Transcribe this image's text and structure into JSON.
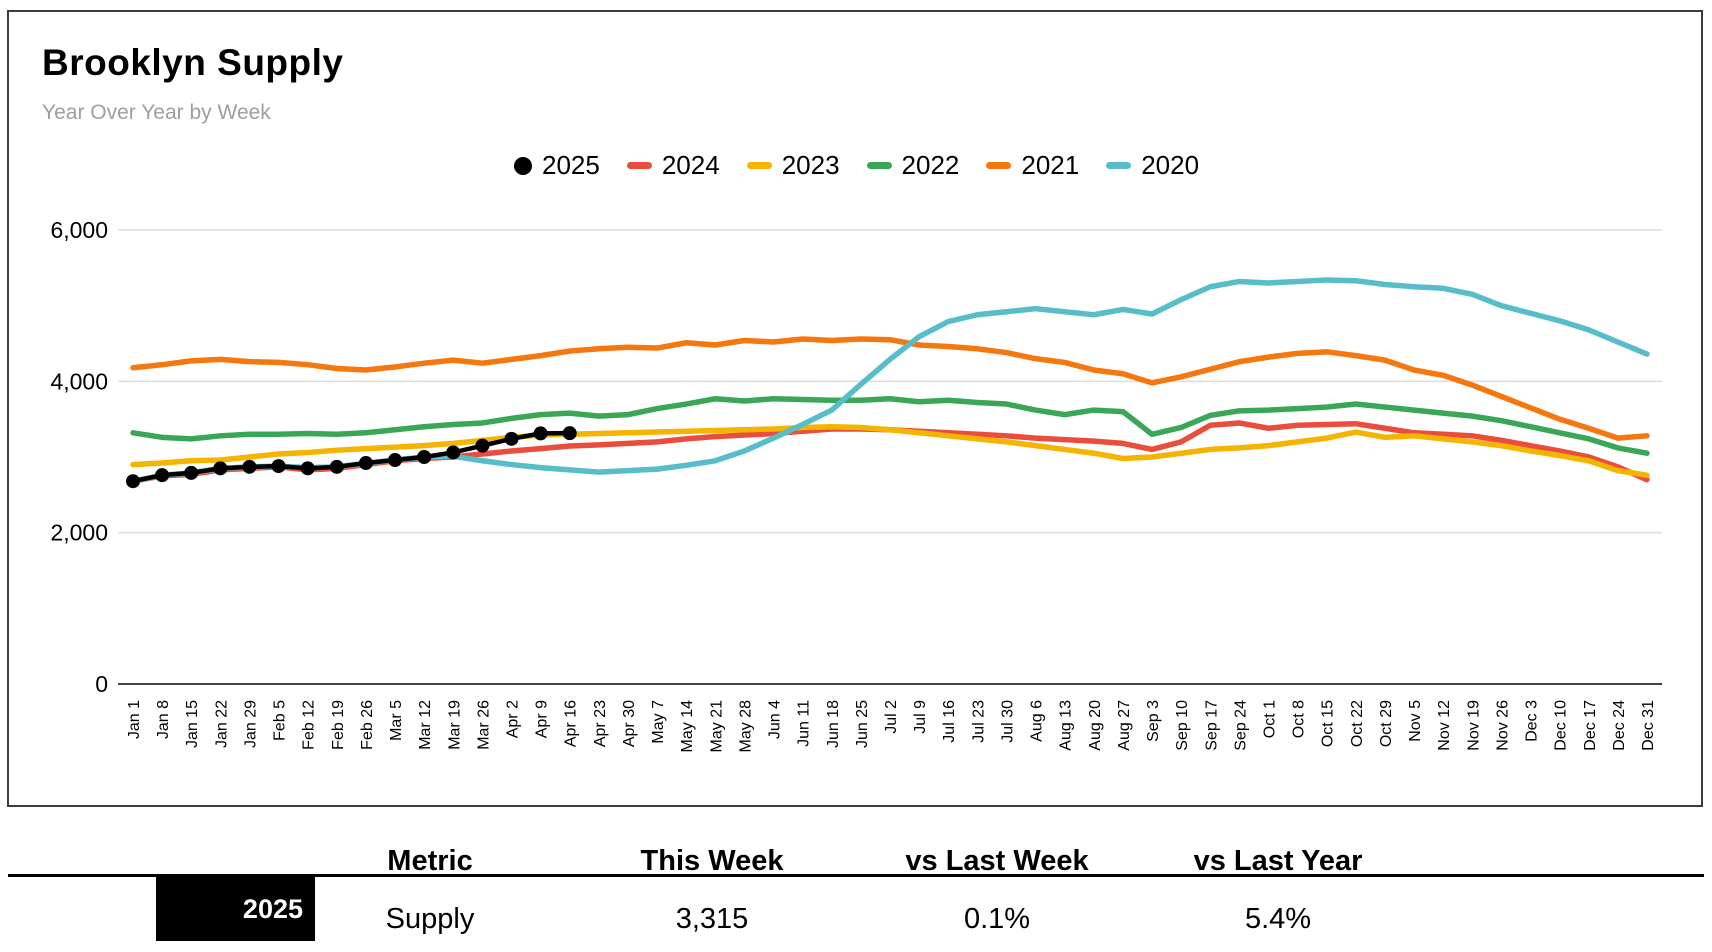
{
  "header": {
    "title": "Brooklyn Supply",
    "subtitle": "Year Over Year by Week"
  },
  "chart_data": {
    "type": "line",
    "title": "Brooklyn Supply",
    "subtitle": "Year Over Year by Week",
    "legend_position": "top",
    "x_labels": [
      "Jan 1",
      "Jan 8",
      "Jan 15",
      "Jan 22",
      "Jan 29",
      "Feb 5",
      "Feb 12",
      "Feb 19",
      "Feb 26",
      "Mar 5",
      "Mar 12",
      "Mar 19",
      "Mar 26",
      "Apr 2",
      "Apr 9",
      "Apr 16",
      "Apr 23",
      "Apr 30",
      "May 7",
      "May 14",
      "May 21",
      "May 28",
      "Jun 4",
      "Jun 11",
      "Jun 18",
      "Jun 25",
      "Jul 2",
      "Jul 9",
      "Jul 16",
      "Jul 23",
      "Jul 30",
      "Aug 6",
      "Aug 13",
      "Aug 20",
      "Aug 27",
      "Sep 3",
      "Sep 10",
      "Sep 17",
      "Sep 24",
      "Oct 1",
      "Oct 8",
      "Oct 15",
      "Oct 22",
      "Oct 29",
      "Nov 5",
      "Nov 12",
      "Nov 19",
      "Nov 26",
      "Dec 3",
      "Dec 10",
      "Dec 17",
      "Dec 24",
      "Dec 31"
    ],
    "y_axis": {
      "min": 0,
      "max": 6000,
      "tick_values": [
        0,
        2000,
        4000,
        6000
      ],
      "tick_labels": [
        "0",
        "2,000",
        "4,000",
        "6,000"
      ],
      "gridlines": true,
      "grid_color": "#dcdcdc",
      "zero_line_color": "#424242"
    },
    "draw_order": [
      "2024",
      "2023",
      "2022",
      "2021",
      "2020",
      "2025"
    ],
    "series": [
      {
        "name": "2025",
        "color": "#000000",
        "swatch": "circle",
        "markers": true,
        "values": [
          2680,
          2760,
          2790,
          2850,
          2870,
          2880,
          2850,
          2870,
          2920,
          2960,
          3000,
          3060,
          3150,
          3240,
          3312,
          3315
        ]
      },
      {
        "name": "2024",
        "color": "#ea4d3c",
        "swatch": "dash",
        "markers": false,
        "values": [
          2680,
          2750,
          2770,
          2830,
          2850,
          2870,
          2830,
          2850,
          2900,
          2950,
          2980,
          3000,
          3040,
          3080,
          3110,
          3145,
          3160,
          3180,
          3200,
          3240,
          3270,
          3290,
          3310,
          3340,
          3370,
          3370,
          3360,
          3340,
          3320,
          3300,
          3280,
          3250,
          3230,
          3210,
          3180,
          3100,
          3200,
          3420,
          3450,
          3380,
          3420,
          3430,
          3440,
          3380,
          3320,
          3300,
          3280,
          3220,
          3150,
          3080,
          3000,
          2870,
          2700
        ]
      },
      {
        "name": "2023",
        "color": "#f5b400",
        "swatch": "dash",
        "markers": false,
        "values": [
          2900,
          2920,
          2950,
          2960,
          3000,
          3040,
          3060,
          3090,
          3110,
          3130,
          3150,
          3180,
          3220,
          3260,
          3290,
          3300,
          3310,
          3320,
          3330,
          3340,
          3350,
          3360,
          3370,
          3390,
          3400,
          3390,
          3360,
          3320,
          3280,
          3240,
          3200,
          3150,
          3100,
          3050,
          2980,
          3000,
          3050,
          3100,
          3120,
          3150,
          3200,
          3250,
          3330,
          3260,
          3280,
          3240,
          3200,
          3150,
          3080,
          3020,
          2950,
          2820,
          2760
        ]
      },
      {
        "name": "2022",
        "color": "#3aa757",
        "swatch": "dash",
        "markers": false,
        "values": [
          3320,
          3260,
          3240,
          3280,
          3300,
          3300,
          3310,
          3300,
          3320,
          3360,
          3400,
          3430,
          3450,
          3510,
          3560,
          3580,
          3540,
          3560,
          3640,
          3700,
          3770,
          3740,
          3770,
          3760,
          3750,
          3750,
          3770,
          3730,
          3750,
          3720,
          3700,
          3620,
          3560,
          3620,
          3600,
          3300,
          3390,
          3550,
          3610,
          3620,
          3640,
          3660,
          3700,
          3660,
          3620,
          3580,
          3540,
          3480,
          3400,
          3320,
          3240,
          3120,
          3050
        ]
      },
      {
        "name": "2021",
        "color": "#f7770f",
        "swatch": "dash",
        "markers": false,
        "values": [
          4180,
          4220,
          4270,
          4290,
          4260,
          4250,
          4220,
          4170,
          4150,
          4190,
          4240,
          4280,
          4240,
          4290,
          4340,
          4400,
          4430,
          4450,
          4440,
          4510,
          4480,
          4540,
          4520,
          4560,
          4540,
          4560,
          4550,
          4480,
          4460,
          4430,
          4380,
          4300,
          4250,
          4150,
          4100,
          3980,
          4060,
          4160,
          4260,
          4320,
          4370,
          4390,
          4340,
          4280,
          4150,
          4080,
          3950,
          3800,
          3650,
          3500,
          3380,
          3250,
          3280
        ]
      },
      {
        "name": "2020",
        "color": "#57bec9",
        "swatch": "dash",
        "markers": false,
        "values": [
          2680,
          2760,
          2790,
          2850,
          2870,
          2880,
          2860,
          2870,
          2920,
          2960,
          3000,
          3010,
          2950,
          2900,
          2860,
          2830,
          2800,
          2820,
          2840,
          2890,
          2950,
          3080,
          3250,
          3430,
          3620,
          3960,
          4290,
          4590,
          4790,
          4880,
          4920,
          4960,
          4920,
          4880,
          4950,
          4890,
          5080,
          5250,
          5320,
          5300,
          5320,
          5340,
          5330,
          5280,
          5250,
          5230,
          5150,
          5000,
          4900,
          4800,
          4680,
          4520,
          4360
        ]
      }
    ]
  },
  "table": {
    "columns": [
      "Metric",
      "This Week",
      "vs Last Week",
      "vs Last Year"
    ],
    "row": {
      "year": "2025",
      "metric": "Supply",
      "this_week": "3,315",
      "vs_last_week": "0.1%",
      "vs_last_year": "5.4%"
    }
  }
}
